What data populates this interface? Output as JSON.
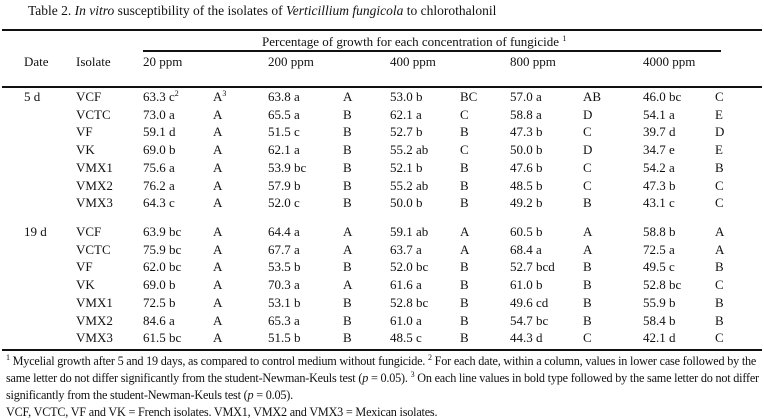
{
  "title": {
    "prefix": "Table 2. ",
    "italic1": "In vitro",
    "mid": " susceptibility of the isolates of ",
    "italic2": "Verticillium fungicola",
    "suffix": " to chlorothalonil"
  },
  "header": {
    "date": "Date",
    "isolate": "Isolate",
    "span": "Percentage of growth for each concentration of fungicide",
    "span_sup": "1",
    "concentrations": [
      "20 ppm",
      "200 ppm",
      "400 ppm",
      "800 ppm",
      "4000 ppm"
    ]
  },
  "groups": [
    {
      "date": "5 d",
      "rows": [
        {
          "isolate": "VCF",
          "cells": [
            [
              "63.3 c",
              "A"
            ],
            [
              "63.8 a",
              "A"
            ],
            [
              "53.0 b",
              "BC"
            ],
            [
              "57.0 a",
              "AB"
            ],
            [
              "46.0 bc",
              "C"
            ]
          ]
        },
        {
          "isolate": "VCTC",
          "cells": [
            [
              "73.0 a",
              "A"
            ],
            [
              "65.5 a",
              "B"
            ],
            [
              "62.1 a",
              "C"
            ],
            [
              "58.8 a",
              "D"
            ],
            [
              "54.1 a",
              "E"
            ]
          ]
        },
        {
          "isolate": "VF",
          "cells": [
            [
              "59.1 d",
              "A"
            ],
            [
              "51.5 c",
              "B"
            ],
            [
              "52.7 b",
              "B"
            ],
            [
              "47.3 b",
              "C"
            ],
            [
              "39.7 d",
              "D"
            ]
          ]
        },
        {
          "isolate": "VK",
          "cells": [
            [
              "69.0 b",
              "A"
            ],
            [
              "62.1 a",
              "B"
            ],
            [
              "55.2 ab",
              "C"
            ],
            [
              "50.0 b",
              "D"
            ],
            [
              "34.7 e",
              "E"
            ]
          ]
        },
        {
          "isolate": "VMX1",
          "cells": [
            [
              "75.6 a",
              "A"
            ],
            [
              "53.9 bc",
              "B"
            ],
            [
              "52.1 b",
              "B"
            ],
            [
              "47.6 b",
              "C"
            ],
            [
              "54.2 a",
              "B"
            ]
          ]
        },
        {
          "isolate": "VMX2",
          "cells": [
            [
              "76.2 a",
              "A"
            ],
            [
              "57.9 b",
              "B"
            ],
            [
              "55.2 ab",
              "B"
            ],
            [
              "48.5 b",
              "C"
            ],
            [
              "47.3 b",
              "C"
            ]
          ]
        },
        {
          "isolate": "VMX3",
          "cells": [
            [
              "64.3 c",
              "A"
            ],
            [
              "52.0 c",
              "B"
            ],
            [
              "50.0 b",
              "B"
            ],
            [
              "49.2 b",
              "B"
            ],
            [
              "43.1 c",
              "C"
            ]
          ]
        }
      ]
    },
    {
      "date": "19 d",
      "rows": [
        {
          "isolate": "VCF",
          "cells": [
            [
              "63.9 bc",
              "A"
            ],
            [
              "64.4 a",
              "A"
            ],
            [
              "59.1 ab",
              "A"
            ],
            [
              "60.5 b",
              "A"
            ],
            [
              "58.8 b",
              "A"
            ]
          ]
        },
        {
          "isolate": "VCTC",
          "cells": [
            [
              "75.9 bc",
              "A"
            ],
            [
              "67.7 a",
              "A"
            ],
            [
              "63.7 a",
              "A"
            ],
            [
              "68.4 a",
              "A"
            ],
            [
              "72.5 a",
              "A"
            ]
          ]
        },
        {
          "isolate": "VF",
          "cells": [
            [
              "62.0 bc",
              "A"
            ],
            [
              "53.5 b",
              "B"
            ],
            [
              "52.0 bc",
              "B"
            ],
            [
              "52.7 bcd",
              "B"
            ],
            [
              "49.5 c",
              "B"
            ]
          ]
        },
        {
          "isolate": "VK",
          "cells": [
            [
              "69.0 b",
              "A"
            ],
            [
              "70.3 a",
              "A"
            ],
            [
              "61.6 a",
              "B"
            ],
            [
              "61.0 b",
              "B"
            ],
            [
              "52.8 bc",
              "C"
            ]
          ]
        },
        {
          "isolate": "VMX1",
          "cells": [
            [
              "72.5 b",
              "A"
            ],
            [
              "53.1 b",
              "B"
            ],
            [
              "52.8 bc",
              "B"
            ],
            [
              "49.6 cd",
              "B"
            ],
            [
              "55.9 b",
              "B"
            ]
          ]
        },
        {
          "isolate": "VMX2",
          "cells": [
            [
              "84.6 a",
              "A"
            ],
            [
              "65.3 a",
              "B"
            ],
            [
              "61.0 a",
              "B"
            ],
            [
              "54.7 bc",
              "B"
            ],
            [
              "58.4 b",
              "B"
            ]
          ]
        },
        {
          "isolate": "VMX3",
          "cells": [
            [
              "61.5 bc",
              "A"
            ],
            [
              "51.5 b",
              "B"
            ],
            [
              "48.5 c",
              "B"
            ],
            [
              "44.3 d",
              "C"
            ],
            [
              "42.1 d",
              "C"
            ]
          ]
        }
      ]
    }
  ],
  "first_cell_sups": [
    "2",
    "3"
  ],
  "footnotes": {
    "s1": "1",
    "t1": " Mycelial growth after 5 and 19 days, as compared to control medium without fungicide. ",
    "s2": "2",
    "t2a": " For each date, within a column, values in lower case followed by the same letter do not differ significantly from the student-Newman-Keuls test (",
    "p1": "p",
    "t2b": " = 0.05). ",
    "s3": "3",
    "t3a": " On each line values in bold type followed by the same letter do not differ significantly from the student-Newman-Keuls test (",
    "p2": "p",
    "t3b": " = 0.05).",
    "isolates": "VCF, VCTC, VF and VK = French isolates. VMX1, VMX2 and VMX3 = Mexican isolates."
  }
}
